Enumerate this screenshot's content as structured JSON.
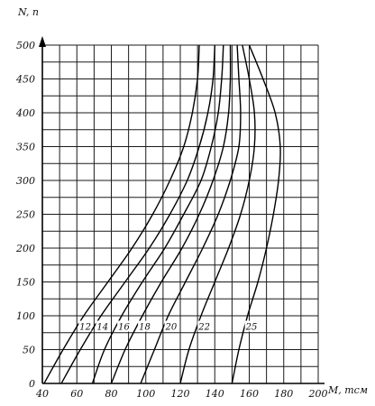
{
  "chart_data": {
    "type": "line",
    "xlabel": "M, тсм",
    "ylabel": "N, п",
    "xlim": [
      40,
      200
    ],
    "ylim": [
      0,
      500
    ],
    "x_ticks": [
      "40",
      "60",
      "80",
      "100",
      "120",
      "140",
      "160",
      "180",
      "200"
    ],
    "y_ticks": [
      "0",
      "50",
      "100",
      "150",
      "200",
      "250",
      "300",
      "350",
      "400",
      "450",
      "500"
    ],
    "grid": true,
    "legend": "none",
    "series": [
      {
        "name": "12",
        "points": [
          [
            41,
            0
          ],
          [
            52,
            50
          ],
          [
            64,
            100
          ],
          [
            78,
            150
          ],
          [
            92,
            200
          ],
          [
            104,
            250
          ],
          [
            114,
            300
          ],
          [
            122,
            350
          ],
          [
            127,
            400
          ],
          [
            130,
            450
          ],
          [
            131,
            500
          ]
        ]
      },
      {
        "name": "14",
        "points": [
          [
            51,
            0
          ],
          [
            62,
            50
          ],
          [
            74,
            100
          ],
          [
            88,
            150
          ],
          [
            102,
            200
          ],
          [
            114,
            250
          ],
          [
            124,
            300
          ],
          [
            131,
            350
          ],
          [
            136,
            400
          ],
          [
            139,
            450
          ],
          [
            140,
            500
          ]
        ]
      },
      {
        "name": "16",
        "points": [
          [
            69,
            0
          ],
          [
            76,
            50
          ],
          [
            86,
            100
          ],
          [
            98,
            150
          ],
          [
            111,
            200
          ],
          [
            122,
            250
          ],
          [
            132,
            300
          ],
          [
            138,
            350
          ],
          [
            142,
            400
          ],
          [
            144,
            450
          ],
          [
            145,
            500
          ]
        ]
      },
      {
        "name": "18",
        "points": [
          [
            80,
            0
          ],
          [
            88,
            50
          ],
          [
            98,
            100
          ],
          [
            109,
            150
          ],
          [
            121,
            200
          ],
          [
            131,
            250
          ],
          [
            139,
            300
          ],
          [
            145,
            350
          ],
          [
            148,
            400
          ],
          [
            149,
            450
          ],
          [
            149,
            500
          ]
        ]
      },
      {
        "name": "20",
        "points": [
          [
            97,
            0
          ],
          [
            105,
            50
          ],
          [
            113,
            100
          ],
          [
            123,
            150
          ],
          [
            133,
            200
          ],
          [
            142,
            250
          ],
          [
            149,
            300
          ],
          [
            154,
            350
          ],
          [
            155,
            400
          ],
          [
            154,
            450
          ],
          [
            153,
            500
          ]
        ]
      },
      {
        "name": "22",
        "points": [
          [
            120,
            0
          ],
          [
            125,
            50
          ],
          [
            132,
            100
          ],
          [
            140,
            150
          ],
          [
            148,
            200
          ],
          [
            155,
            250
          ],
          [
            160,
            300
          ],
          [
            163,
            350
          ],
          [
            163,
            400
          ],
          [
            160,
            450
          ],
          [
            156,
            500
          ]
        ]
      },
      {
        "name": "25",
        "points": [
          [
            150,
            0
          ],
          [
            154,
            50
          ],
          [
            159,
            100
          ],
          [
            165,
            150
          ],
          [
            170,
            200
          ],
          [
            174,
            250
          ],
          [
            177,
            300
          ],
          [
            178,
            350
          ],
          [
            175,
            400
          ],
          [
            168,
            450
          ],
          [
            160,
            500
          ]
        ]
      }
    ],
    "curve_labels": [
      "12",
      "14",
      "16",
      "18",
      "20",
      "22",
      "25"
    ]
  }
}
